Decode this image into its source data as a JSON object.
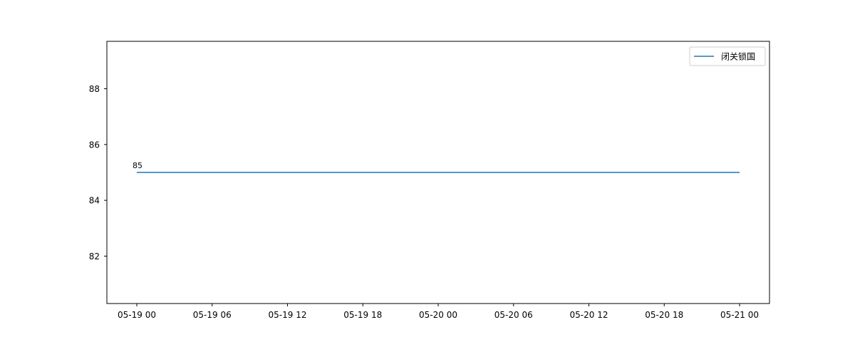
{
  "chart_data": {
    "type": "line",
    "x": [
      "05-19 00",
      "05-21 00"
    ],
    "x_ticks": [
      "05-19 00",
      "05-19 06",
      "05-19 12",
      "05-19 18",
      "05-20 00",
      "05-20 06",
      "05-20 12",
      "05-20 18",
      "05-21 00"
    ],
    "y_ticks": [
      82,
      84,
      86,
      88
    ],
    "ylim": [
      80.3,
      89.7
    ],
    "series": [
      {
        "name": "闭关锁国",
        "values": [
          85,
          85
        ],
        "color": "#1f77b4"
      }
    ],
    "data_labels": [
      {
        "x_index": 0,
        "text": "85"
      }
    ],
    "title": "",
    "xlabel": "",
    "ylabel": "",
    "grid": false,
    "legend_position": "top-right"
  }
}
